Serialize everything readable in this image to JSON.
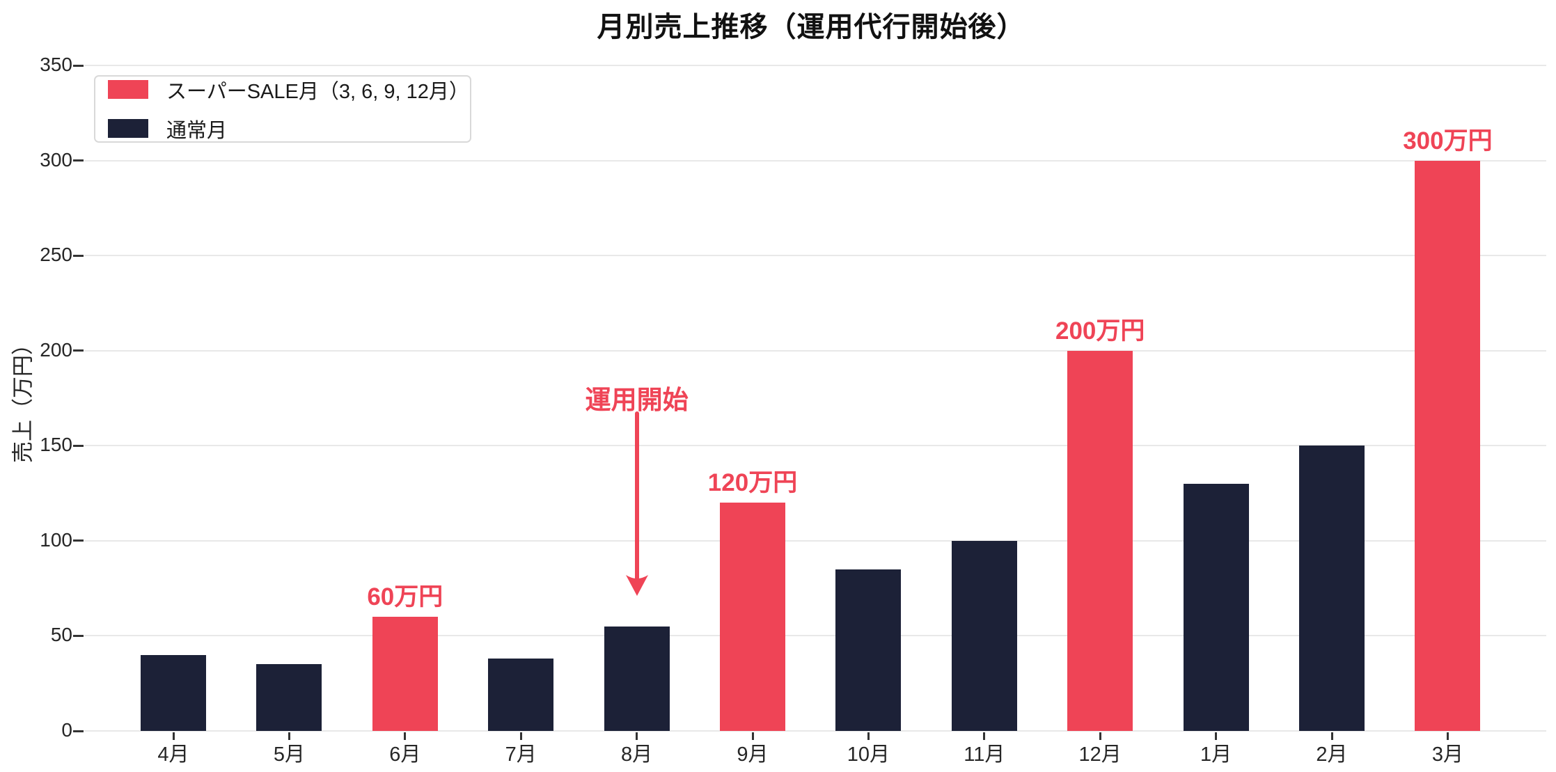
{
  "title": "月別売上推移（運用代行開始後）",
  "y_axis_title": "売上（万円）",
  "legend": {
    "items": [
      {
        "label": "スーパーSALE月（3, 6, 9, 12月）",
        "color": "#ef4456"
      },
      {
        "label": "通常月",
        "color": "#1c2137"
      }
    ]
  },
  "chart_data": {
    "type": "bar",
    "title": "月別売上推移（運用代行開始後）",
    "xlabel": "",
    "ylabel": "売上（万円）",
    "ylim": [
      0,
      350
    ],
    "yticks": [
      0,
      50,
      100,
      150,
      200,
      250,
      300,
      350
    ],
    "grid": "horizontal",
    "legend_position": "upper left",
    "categories": [
      "4月",
      "5月",
      "6月",
      "7月",
      "8月",
      "9月",
      "10月",
      "11月",
      "12月",
      "1月",
      "2月",
      "3月"
    ],
    "series": [
      {
        "name": "売上",
        "values": [
          40,
          35,
          60,
          38,
          55,
          120,
          85,
          100,
          200,
          130,
          150,
          300
        ]
      }
    ],
    "sale_month_flags": [
      false,
      false,
      true,
      false,
      false,
      true,
      false,
      false,
      true,
      false,
      false,
      true
    ],
    "colors": {
      "sale": "#ef4456",
      "normal": "#1c2137",
      "grid": "#e8e8e8",
      "tick": "#333333",
      "tick_text": "#262626",
      "annotation": "#ef4456"
    },
    "bar_value_labels": [
      {
        "category": "6月",
        "label": "60万円"
      },
      {
        "category": "9月",
        "label": "120万円"
      },
      {
        "category": "12月",
        "label": "200万円"
      },
      {
        "category": "3月",
        "label": "300万円"
      }
    ],
    "arrow_annotation": {
      "label": "運用開始",
      "category": "8月"
    }
  }
}
